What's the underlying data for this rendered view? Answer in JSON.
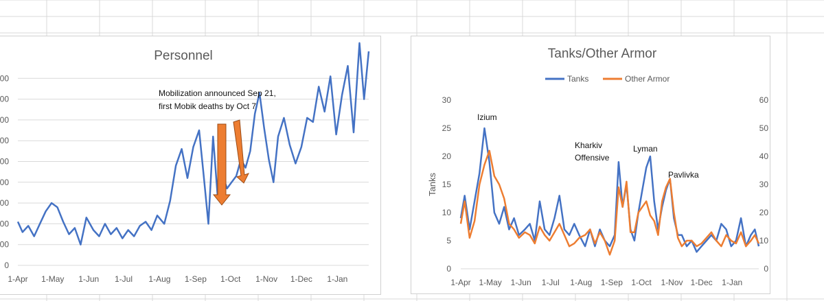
{
  "colors": {
    "tanks": "#4472C4",
    "other_armor": "#ED7D31",
    "gridlines": "#d9d9d9",
    "arrow": "#ED7D31"
  },
  "chart_data": [
    {
      "type": "line",
      "title": "Personnel",
      "x_tick_labels": [
        "1-Apr",
        "1-May",
        "1-Jun",
        "1-Jul",
        "1-Aug",
        "1-Sep",
        "1-Oct",
        "1-Nov",
        "1-Dec",
        "1-Jan"
      ],
      "y_tick_labels": [
        "0",
        "00",
        "00",
        "00",
        "00",
        "00",
        "00",
        "00",
        "00",
        "00",
        "00",
        "00"
      ],
      "ylim": [
        0,
        11
      ],
      "series": [
        {
          "values_x": [
            "2022-04-01",
            "2022-04-05",
            "2022-04-10",
            "2022-04-15",
            "2022-04-20",
            "2022-04-25",
            "2022-04-30",
            "2022-05-05",
            "2022-05-10",
            "2022-05-15",
            "2022-05-20",
            "2022-05-25",
            "2022-05-30",
            "2022-06-05",
            "2022-06-10",
            "2022-06-15",
            "2022-06-20",
            "2022-06-25",
            "2022-06-30",
            "2022-07-05",
            "2022-07-10",
            "2022-07-15",
            "2022-07-20",
            "2022-07-25",
            "2022-07-30",
            "2022-08-05",
            "2022-08-10",
            "2022-08-15",
            "2022-08-20",
            "2022-08-25",
            "2022-08-30",
            "2022-09-04",
            "2022-09-08",
            "2022-09-12",
            "2022-09-16",
            "2022-09-20",
            "2022-09-24",
            "2022-09-28",
            "2022-10-02",
            "2022-10-06",
            "2022-10-10",
            "2022-10-14",
            "2022-10-18",
            "2022-10-22",
            "2022-10-26",
            "2022-10-30",
            "2022-11-03",
            "2022-11-07",
            "2022-11-11",
            "2022-11-16",
            "2022-11-21",
            "2022-11-26",
            "2022-12-01",
            "2022-12-06",
            "2022-12-11",
            "2022-12-16",
            "2022-12-21",
            "2022-12-26",
            "2022-12-31",
            "2023-01-05",
            "2023-01-10",
            "2023-01-15",
            "2023-01-20",
            "2023-01-24",
            "2023-01-28"
          ],
          "values_y": [
            2.1,
            1.6,
            1.9,
            1.4,
            2.0,
            2.6,
            3.0,
            2.8,
            2.1,
            1.5,
            1.8,
            1.0,
            2.3,
            1.7,
            1.4,
            2.0,
            1.5,
            1.8,
            1.3,
            1.7,
            1.4,
            1.9,
            2.1,
            1.7,
            2.4,
            2.0,
            3.1,
            4.8,
            5.6,
            4.2,
            5.7,
            6.5,
            4.3,
            2.0,
            6.2,
            3.3,
            4.4,
            3.7,
            4.0,
            4.3,
            5.1,
            4.7,
            5.5,
            7.3,
            8.3,
            6.6,
            5.1,
            4.0,
            6.2,
            7.1,
            5.8,
            4.9,
            5.7,
            7.1,
            6.9,
            8.6,
            7.4,
            9.1,
            6.3,
            8.2,
            9.6,
            6.4,
            10.7,
            8.0,
            10.3
          ]
        }
      ],
      "annotation": [
        "Mobilization announced Sep 21,",
        "first Mobik deaths by Oct 7"
      ]
    },
    {
      "type": "line",
      "title": "Tanks/Other Armor",
      "x_tick_labels": [
        "1-Apr",
        "1-May",
        "1-Jun",
        "1-Jul",
        "1-Aug",
        "1-Sep",
        "1-Oct",
        "1-Nov",
        "1-Dec",
        "1-Jan"
      ],
      "y_left": {
        "label": "Tanks",
        "ticks": [
          0,
          5,
          10,
          15,
          20,
          25,
          30
        ]
      },
      "y_right": {
        "label": "Other Armor",
        "ticks": [
          0,
          10,
          20,
          30,
          40,
          50,
          60
        ]
      },
      "legend": {
        "position": "top",
        "entries": [
          "Tanks",
          "Other Armor"
        ]
      },
      "annotations": [
        "Izium",
        "Kharkiv",
        "Offensive",
        "Lyman",
        "Pavlivka"
      ],
      "x": [
        "2022-04-01",
        "2022-04-05",
        "2022-04-10",
        "2022-04-15",
        "2022-04-20",
        "2022-04-25",
        "2022-04-30",
        "2022-05-05",
        "2022-05-10",
        "2022-05-15",
        "2022-05-20",
        "2022-05-25",
        "2022-05-30",
        "2022-06-05",
        "2022-06-10",
        "2022-06-15",
        "2022-06-20",
        "2022-06-25",
        "2022-06-30",
        "2022-07-05",
        "2022-07-10",
        "2022-07-15",
        "2022-07-20",
        "2022-07-25",
        "2022-07-30",
        "2022-08-05",
        "2022-08-10",
        "2022-08-15",
        "2022-08-20",
        "2022-08-25",
        "2022-08-30",
        "2022-09-04",
        "2022-09-08",
        "2022-09-12",
        "2022-09-16",
        "2022-09-20",
        "2022-09-24",
        "2022-09-28",
        "2022-10-02",
        "2022-10-06",
        "2022-10-10",
        "2022-10-14",
        "2022-10-18",
        "2022-10-22",
        "2022-10-26",
        "2022-10-30",
        "2022-11-03",
        "2022-11-07",
        "2022-11-11",
        "2022-11-16",
        "2022-11-21",
        "2022-11-26",
        "2022-12-01",
        "2022-12-06",
        "2022-12-11",
        "2022-12-16",
        "2022-12-21",
        "2022-12-26",
        "2022-12-31",
        "2023-01-05",
        "2023-01-10",
        "2023-01-15",
        "2023-01-20",
        "2023-01-24",
        "2023-01-28"
      ],
      "series": [
        {
          "name": "Tanks",
          "axis": "left",
          "values": [
            9,
            13,
            7,
            12,
            17,
            25,
            19,
            10,
            8,
            11,
            7,
            9,
            6,
            7,
            8,
            5,
            12,
            7,
            6,
            9,
            13,
            7,
            6,
            8,
            6,
            4,
            7,
            4,
            7,
            5,
            4,
            6,
            19,
            11,
            15,
            7,
            5,
            10,
            14,
            18,
            20,
            12,
            7,
            11,
            14,
            16,
            9,
            6,
            6,
            4,
            5,
            3,
            4,
            5,
            6,
            5,
            8,
            7,
            4,
            5,
            9,
            4,
            6,
            7,
            4
          ]
        },
        {
          "name": "Other Armor",
          "axis": "right",
          "values": [
            16,
            24,
            11,
            17,
            30,
            37,
            42,
            33,
            30,
            25,
            16,
            14,
            11,
            13,
            12,
            9,
            15,
            12,
            10,
            13,
            16,
            12,
            8,
            9,
            11,
            12,
            14,
            9,
            13,
            10,
            5,
            10,
            29,
            22,
            31,
            13,
            13,
            20,
            22,
            24,
            19,
            17,
            12,
            24,
            29,
            32,
            20,
            11,
            8,
            10,
            10,
            8,
            9,
            11,
            13,
            10,
            8,
            12,
            10,
            9,
            13,
            8,
            10,
            12,
            9
          ]
        }
      ]
    }
  ]
}
